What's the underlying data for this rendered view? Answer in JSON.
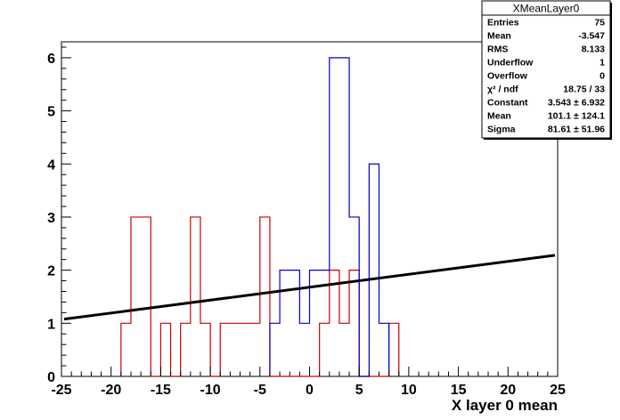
{
  "chart_data": {
    "type": "histogram",
    "xlabel": "X layer 0 mean",
    "ylabel": "",
    "xlim": [
      -25,
      25
    ],
    "ylim": [
      0,
      6.3
    ],
    "bin_width": 1,
    "x_ticks": [
      -25,
      -20,
      -15,
      -10,
      -5,
      0,
      5,
      10,
      15,
      20,
      25
    ],
    "y_ticks": [
      0,
      1,
      2,
      3,
      4,
      5,
      6
    ],
    "grid": false,
    "colors": {
      "red": "#cc0000",
      "blue": "#0000cc",
      "fit": "#000000"
    },
    "series": [
      {
        "color_name": "red",
        "bins_low_edge": [
          -19,
          -18,
          -17,
          -16,
          -15,
          -14,
          -13,
          -12,
          -11,
          -10,
          -9,
          -8,
          -7,
          -6,
          -5,
          -4,
          -3,
          -2,
          -1,
          0,
          1,
          2,
          3,
          4,
          5,
          6,
          7,
          8
        ],
        "values": [
          1,
          3,
          3,
          0,
          1,
          0,
          1,
          3,
          1,
          0,
          1,
          1,
          1,
          1,
          3,
          0,
          0,
          0,
          0,
          0,
          1,
          2,
          1,
          2,
          0,
          0,
          0,
          1
        ]
      },
      {
        "color_name": "blue",
        "bins_low_edge": [
          -4,
          -3,
          -2,
          -1,
          0,
          1,
          2,
          3,
          4,
          5,
          6,
          7
        ],
        "values": [
          1,
          2,
          2,
          1,
          2,
          2,
          6,
          6,
          3,
          0,
          4,
          1
        ]
      }
    ],
    "fit_line": {
      "x": [
        -25,
        25
      ],
      "y": [
        1.07,
        2.28
      ]
    }
  },
  "stats_box": {
    "title": "XMeanLayer0",
    "rows": [
      {
        "label": "Entries",
        "value": "75"
      },
      {
        "label": "Mean",
        "value": "-3.547"
      },
      {
        "label": "RMS",
        "value": "8.133"
      },
      {
        "label": "Underflow",
        "value": "1"
      },
      {
        "label": "Overflow",
        "value": "0"
      },
      {
        "label": "χ² / ndf",
        "value": "18.75 / 33"
      },
      {
        "label": "Constant",
        "value": "3.543 ± 6.932"
      },
      {
        "label": "Mean",
        "value": "101.1 ± 124.1"
      },
      {
        "label": "Sigma",
        "value": "81.61 ± 51.96"
      }
    ]
  }
}
